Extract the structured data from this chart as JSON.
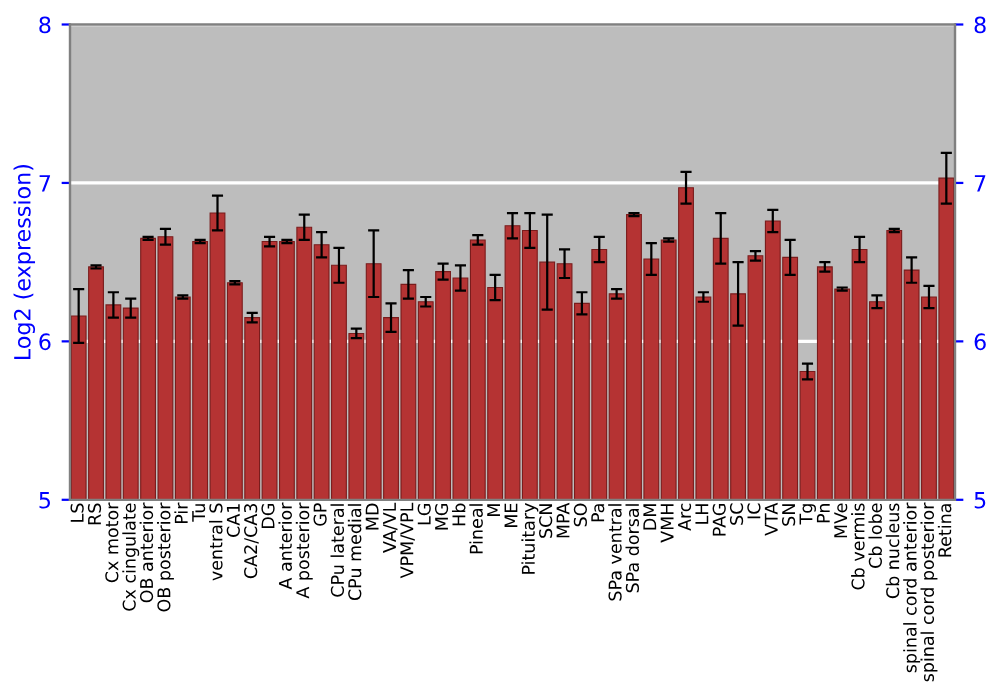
{
  "chart_data": {
    "type": "bar",
    "ylabel": "Log2 (expression)",
    "categories": [
      "LS",
      "RS",
      "Cx motor",
      "Cx cingulate",
      "OB anterior",
      "OB posterior",
      "Pir",
      "Tu",
      "ventral S",
      "CA1",
      "CA2/CA3",
      "DG",
      "A anterior",
      "A posterior",
      "GP",
      "CPu lateral",
      "CPu medial",
      "MD",
      "VA/VL",
      "VPM/VPL",
      "LG",
      "MG",
      "Hb",
      "Pineal",
      "M",
      "ME",
      "Pituitary",
      "SCN",
      "MPA",
      "SO",
      "Pa",
      "SPa ventral",
      "SPa dorsal",
      "DM",
      "VMH",
      "Arc",
      "LH",
      "PAG",
      "SC",
      "IC",
      "VTA",
      "SN",
      "Tg",
      "Pn",
      "MVe",
      "Cb vermis",
      "Cb lobe",
      "Cb nucleus",
      "spinal cord anterior",
      "spinal cord posterior",
      "Retina"
    ],
    "values": [
      6.16,
      6.47,
      6.23,
      6.21,
      6.65,
      6.66,
      6.28,
      6.63,
      6.81,
      6.37,
      6.15,
      6.63,
      6.63,
      6.72,
      6.61,
      6.48,
      6.05,
      6.49,
      6.15,
      6.36,
      6.25,
      6.44,
      6.4,
      6.64,
      6.34,
      6.73,
      6.7,
      6.5,
      6.49,
      6.24,
      6.58,
      6.3,
      6.8,
      6.52,
      6.64,
      6.97,
      6.28,
      6.65,
      6.3,
      6.54,
      6.76,
      6.53,
      5.81,
      6.47,
      6.33,
      6.58,
      6.25,
      6.7,
      6.45,
      6.28,
      7.03
    ],
    "errors": [
      0.17,
      0.01,
      0.08,
      0.06,
      0.01,
      0.05,
      0.01,
      0.01,
      0.11,
      0.01,
      0.03,
      0.03,
      0.01,
      0.08,
      0.08,
      0.11,
      0.03,
      0.21,
      0.09,
      0.09,
      0.03,
      0.05,
      0.08,
      0.03,
      0.08,
      0.08,
      0.11,
      0.3,
      0.09,
      0.07,
      0.08,
      0.03,
      0.01,
      0.1,
      0.01,
      0.1,
      0.03,
      0.16,
      0.2,
      0.03,
      0.07,
      0.11,
      0.05,
      0.03,
      0.01,
      0.08,
      0.04,
      0.01,
      0.08,
      0.07,
      0.16
    ],
    "color": "#b53333",
    "ylim": [
      5,
      8
    ],
    "yticks": [
      5,
      6,
      7,
      8
    ],
    "y2lim": [
      5,
      8
    ],
    "y2ticks": [
      5,
      6,
      7,
      8
    ],
    "grid": "y",
    "legend": false
  }
}
